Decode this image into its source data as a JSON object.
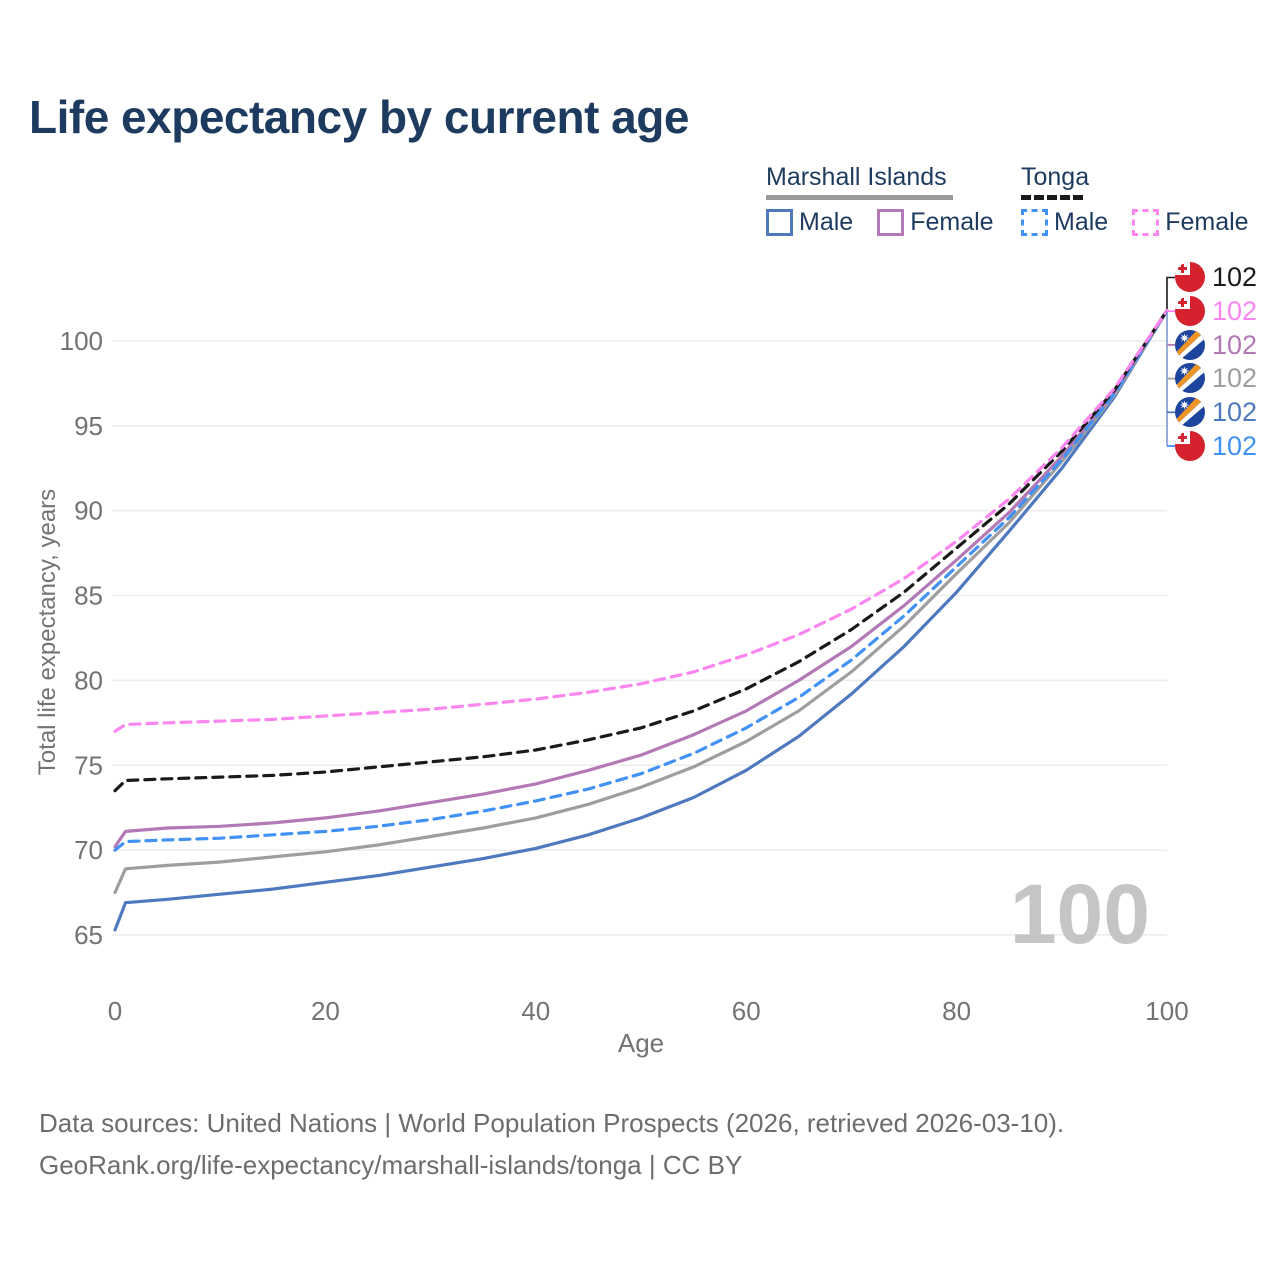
{
  "title": "Life expectancy by current age",
  "watermark": "100",
  "legend": {
    "groups": [
      {
        "title": "Marshall Islands",
        "line_style": "solid",
        "line_color": "#9a9a9a",
        "items": [
          {
            "label": "Male",
            "color": "#4e79bf"
          },
          {
            "label": "Female",
            "color": "#b279b6"
          }
        ]
      },
      {
        "title": "Tonga",
        "line_style": "dashed",
        "line_color": "#1a1a1a",
        "items": [
          {
            "label": "Male",
            "color": "#4291f5"
          },
          {
            "label": "Female",
            "color": "#fc86ef"
          }
        ]
      }
    ]
  },
  "end_labels": [
    {
      "country": "Tonga",
      "flag": "tonga",
      "value": "102",
      "color": "#1a1a1a"
    },
    {
      "country": "Tonga",
      "flag": "tonga",
      "value": "102",
      "color": "#fc86ef"
    },
    {
      "country": "Marshall Islands",
      "flag": "marshall-islands",
      "value": "102",
      "color": "#b279b6"
    },
    {
      "country": "Marshall Islands",
      "flag": "marshall-islands",
      "value": "102",
      "color": "#9e9e9e"
    },
    {
      "country": "Marshall Islands",
      "flag": "marshall-islands",
      "value": "102",
      "color": "#4e79bf"
    },
    {
      "country": "Tonga",
      "flag": "tonga",
      "value": "102",
      "color": "#4291f5"
    }
  ],
  "footer": {
    "line1": "Data sources: United Nations | World Population Prospects (2026, retrieved 2026-03-10).",
    "line2": "GeoRank.org/life-expectancy/marshall-islands/tonga | CC BY"
  },
  "chart_data": {
    "type": "line",
    "title": "Life expectancy by current age",
    "xlabel": "Age",
    "ylabel": "Total life expectancy, years",
    "xlim": [
      0,
      100
    ],
    "ylim": [
      63,
      103
    ],
    "x_ticks": [
      0,
      20,
      40,
      60,
      80,
      100
    ],
    "y_ticks": [
      65,
      70,
      75,
      80,
      85,
      90,
      95,
      100
    ],
    "grid": "horizontal",
    "legend_position": "top-right",
    "ages": [
      0,
      1,
      5,
      10,
      15,
      20,
      25,
      30,
      35,
      40,
      45,
      50,
      55,
      60,
      65,
      70,
      75,
      80,
      85,
      90,
      95,
      100
    ],
    "series": [
      {
        "name": "Marshall Islands Male",
        "color": "#4e79bf",
        "style": "solid",
        "values": [
          65.3,
          66.9,
          67.1,
          67.4,
          67.7,
          68.1,
          68.5,
          69.0,
          69.5,
          70.1,
          70.9,
          71.9,
          73.1,
          74.7,
          76.7,
          79.2,
          82.0,
          85.2,
          88.8,
          92.5,
          96.7,
          101.8
        ]
      },
      {
        "name": "Marshall Islands All",
        "color": "#9e9e9e",
        "style": "solid",
        "values": [
          67.5,
          68.9,
          69.1,
          69.3,
          69.6,
          69.9,
          70.3,
          70.8,
          71.3,
          71.9,
          72.7,
          73.7,
          74.9,
          76.4,
          78.2,
          80.5,
          83.2,
          86.3,
          89.3,
          92.9,
          96.8,
          101.8
        ]
      },
      {
        "name": "Marshall Islands Female",
        "color": "#b279b6",
        "style": "solid",
        "values": [
          70.2,
          71.1,
          71.3,
          71.4,
          71.6,
          71.9,
          72.3,
          72.8,
          73.3,
          73.9,
          74.7,
          75.6,
          76.8,
          78.2,
          80.0,
          82.0,
          84.4,
          87.1,
          89.9,
          93.2,
          97.0,
          101.8
        ]
      },
      {
        "name": "Tonga Male",
        "color": "#4291f5",
        "style": "dashed",
        "values": [
          70.0,
          70.5,
          70.6,
          70.7,
          70.9,
          71.1,
          71.4,
          71.8,
          72.3,
          72.9,
          73.6,
          74.5,
          75.7,
          77.2,
          79.0,
          81.2,
          83.8,
          86.7,
          89.6,
          93.0,
          96.9,
          101.8
        ]
      },
      {
        "name": "Tonga All",
        "color": "#1a1a1a",
        "style": "dashed",
        "values": [
          73.5,
          74.1,
          74.2,
          74.3,
          74.4,
          74.6,
          74.9,
          75.2,
          75.5,
          75.9,
          76.5,
          77.2,
          78.2,
          79.5,
          81.1,
          83.0,
          85.2,
          87.8,
          90.4,
          93.5,
          97.1,
          101.8
        ]
      },
      {
        "name": "Tonga Female",
        "color": "#fc86ef",
        "style": "dashed",
        "values": [
          77.0,
          77.4,
          77.5,
          77.6,
          77.7,
          77.9,
          78.1,
          78.3,
          78.6,
          78.9,
          79.3,
          79.8,
          80.5,
          81.5,
          82.7,
          84.2,
          86.0,
          88.2,
          90.7,
          93.7,
          97.2,
          101.8
        ]
      }
    ]
  }
}
